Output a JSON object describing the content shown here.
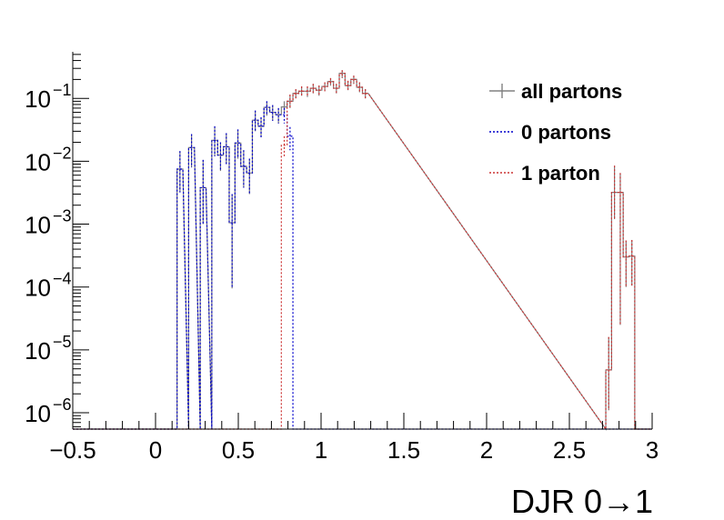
{
  "chart_data": {
    "type": "line",
    "xlabel": "DJR 0→1",
    "ylabel": "",
    "x_scale": "linear",
    "y_scale": "log",
    "xlim": [
      -0.5,
      3.0
    ],
    "ylim": [
      5.5e-07,
      0.55
    ],
    "x_ticks": [
      -0.5,
      0,
      0.5,
      1,
      1.5,
      2,
      2.5,
      3
    ],
    "x_tick_labels": [
      "−0.5",
      "0",
      "0.5",
      "1",
      "1.5",
      "2",
      "2.5",
      "3"
    ],
    "y_tick_exponents": [
      -6,
      -5,
      -4,
      -3,
      -2,
      -1
    ],
    "y_tick_base": "10",
    "legend_position": "top-right",
    "grid": false,
    "series": [
      {
        "name": "all partons",
        "color": "#808080",
        "style": "solid",
        "bins": [
          [
            0.13,
            0.165,
            0.0075,
            0.0145,
            0.0032
          ],
          [
            0.2,
            0.235,
            0.0165,
            0.027,
            0.008
          ],
          [
            0.27,
            0.305,
            0.0038,
            0.0105,
            0.001
          ],
          [
            0.34,
            0.375,
            0.0215,
            0.036,
            0.012
          ],
          [
            0.375,
            0.41,
            0.0125,
            0.02,
            0.007
          ],
          [
            0.41,
            0.445,
            0.017,
            0.028,
            0.009
          ],
          [
            0.445,
            0.48,
            0.00105,
            0.003,
            9.5e-05
          ],
          [
            0.48,
            0.515,
            0.0195,
            0.032,
            0.011
          ],
          [
            0.515,
            0.55,
            0.0083,
            0.015,
            0.0038
          ],
          [
            0.55,
            0.585,
            0.0065,
            0.011,
            0.003
          ],
          [
            0.585,
            0.62,
            0.045,
            0.064,
            0.03
          ],
          [
            0.62,
            0.655,
            0.036,
            0.05,
            0.024
          ],
          [
            0.655,
            0.69,
            0.072,
            0.09,
            0.053
          ],
          [
            0.69,
            0.725,
            0.06,
            0.078,
            0.044
          ],
          [
            0.725,
            0.76,
            0.055,
            0.07,
            0.04
          ],
          [
            0.76,
            0.795,
            0.073,
            0.09,
            0.058
          ],
          [
            0.795,
            0.83,
            0.09,
            0.115,
            0.07
          ],
          [
            0.83,
            0.865,
            0.12,
            0.14,
            0.1
          ],
          [
            0.865,
            0.9,
            0.13,
            0.155,
            0.11
          ],
          [
            0.9,
            0.935,
            0.13,
            0.155,
            0.105
          ],
          [
            0.935,
            0.97,
            0.145,
            0.17,
            0.12
          ],
          [
            0.97,
            1.005,
            0.135,
            0.16,
            0.11
          ],
          [
            1.005,
            1.04,
            0.155,
            0.18,
            0.13
          ],
          [
            1.04,
            1.075,
            0.185,
            0.21,
            0.16
          ],
          [
            1.075,
            1.11,
            0.145,
            0.17,
            0.12
          ],
          [
            1.11,
            1.145,
            0.25,
            0.28,
            0.21
          ],
          [
            1.145,
            1.18,
            0.16,
            0.19,
            0.135
          ],
          [
            1.18,
            1.215,
            0.2,
            0.23,
            0.17
          ],
          [
            1.215,
            1.25,
            0.15,
            0.18,
            0.125
          ],
          [
            1.25,
            1.285,
            0.12,
            0.14,
            0.1
          ],
          [
            2.72,
            2.755,
            4.8e-06,
            1.6e-05,
            1.1e-06
          ],
          [
            2.755,
            2.79,
            0.0032,
            0.0085,
            0.0012
          ],
          [
            2.79,
            2.825,
            0.0032,
            0.0065,
            2.5e-05
          ],
          [
            2.825,
            2.86,
            0.0003,
            0.00055,
            0.0001
          ],
          [
            2.86,
            2.895,
            0.00031,
            0.00056,
            0.000105
          ]
        ]
      },
      {
        "name": "0 partons",
        "color": "#0000cc",
        "style": "dotted",
        "bins": [
          [
            0.13,
            0.165,
            0.0075,
            0.0145,
            0.0032
          ],
          [
            0.2,
            0.235,
            0.0165,
            0.027,
            0.008
          ],
          [
            0.27,
            0.305,
            0.0038,
            0.0105,
            0.001
          ],
          [
            0.34,
            0.375,
            0.0215,
            0.036,
            0.012
          ],
          [
            0.375,
            0.41,
            0.0125,
            0.02,
            0.007
          ],
          [
            0.41,
            0.445,
            0.017,
            0.028,
            0.009
          ],
          [
            0.445,
            0.48,
            0.00105,
            0.003,
            9.5e-05
          ],
          [
            0.48,
            0.515,
            0.0195,
            0.032,
            0.011
          ],
          [
            0.515,
            0.55,
            0.0083,
            0.015,
            0.0038
          ],
          [
            0.55,
            0.585,
            0.0065,
            0.011,
            0.003
          ],
          [
            0.585,
            0.62,
            0.045,
            0.064,
            0.03
          ],
          [
            0.62,
            0.655,
            0.036,
            0.05,
            0.024
          ],
          [
            0.655,
            0.69,
            0.072,
            0.09,
            0.053
          ],
          [
            0.69,
            0.725,
            0.06,
            0.078,
            0.044
          ],
          [
            0.725,
            0.76,
            0.055,
            0.07,
            0.04
          ],
          [
            0.76,
            0.795,
            0.055,
            0.07,
            0.04
          ],
          [
            0.795,
            0.83,
            0.025,
            0.035,
            0.015
          ]
        ]
      },
      {
        "name": "1 parton",
        "color": "#cc3333",
        "style": "dotted",
        "bins": [
          [
            0.76,
            0.795,
            0.018,
            0.025,
            0.012
          ],
          [
            0.795,
            0.83,
            0.09,
            0.115,
            0.07
          ],
          [
            0.83,
            0.865,
            0.12,
            0.14,
            0.1
          ],
          [
            0.865,
            0.9,
            0.13,
            0.155,
            0.11
          ],
          [
            0.9,
            0.935,
            0.13,
            0.155,
            0.105
          ],
          [
            0.935,
            0.97,
            0.145,
            0.17,
            0.12
          ],
          [
            0.97,
            1.005,
            0.135,
            0.16,
            0.11
          ],
          [
            1.005,
            1.04,
            0.155,
            0.18,
            0.13
          ],
          [
            1.04,
            1.075,
            0.185,
            0.21,
            0.16
          ],
          [
            1.075,
            1.11,
            0.145,
            0.17,
            0.12
          ],
          [
            1.11,
            1.145,
            0.25,
            0.28,
            0.21
          ],
          [
            1.145,
            1.18,
            0.16,
            0.19,
            0.135
          ],
          [
            1.18,
            1.215,
            0.2,
            0.23,
            0.17
          ],
          [
            1.215,
            1.25,
            0.15,
            0.18,
            0.125
          ],
          [
            1.25,
            1.285,
            0.12,
            0.14,
            0.1
          ],
          [
            2.72,
            2.755,
            4.8e-06,
            1.6e-05,
            1.1e-06
          ],
          [
            2.755,
            2.79,
            0.0032,
            0.0085,
            0.0012
          ],
          [
            2.79,
            2.825,
            0.0032,
            0.0065,
            2.5e-05
          ],
          [
            2.825,
            2.86,
            0.0003,
            0.00055,
            0.0001
          ],
          [
            2.86,
            2.895,
            0.00031,
            0.00056,
            0.000105
          ]
        ]
      }
    ]
  }
}
